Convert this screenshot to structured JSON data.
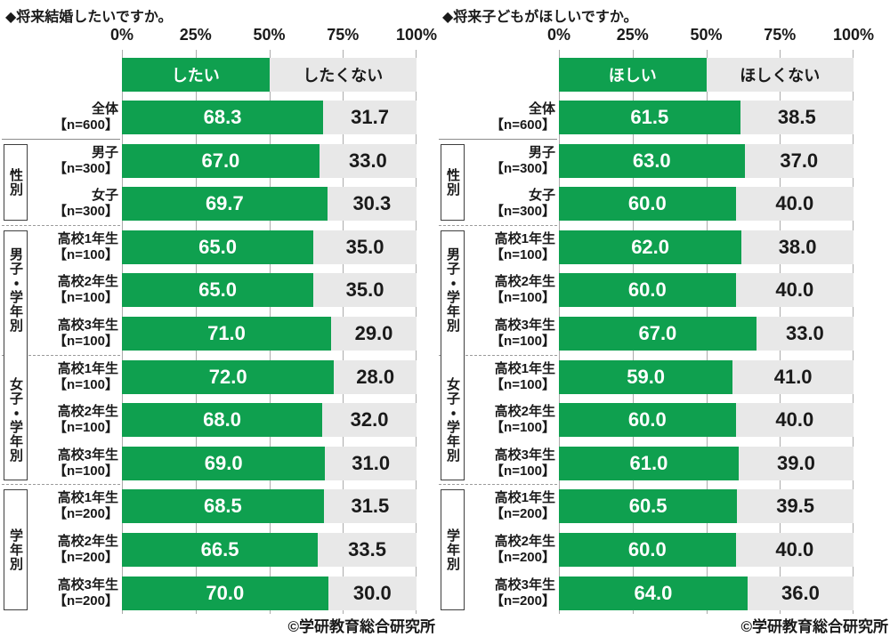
{
  "colors": {
    "bar_yes_green": "#0fa04f",
    "bar_no_gray": "#e8e8e8",
    "text": "#1a1a1a"
  },
  "chart_data": [
    {
      "type": "bar",
      "orientation": "horizontal-stacked",
      "title": "◆将来結婚したいですか。",
      "legend": [
        "したい",
        "したくない"
      ],
      "x_ticks": [
        "0%",
        "25%",
        "50%",
        "75%",
        "100%"
      ],
      "xlim": [
        0,
        100
      ],
      "grid": "ticks-at-25",
      "credit": "©学研教育総合研究所",
      "groups": [
        {
          "label": "性別",
          "start": 1,
          "end": 2
        },
        {
          "label": "男子・学年別",
          "start": 3,
          "end": 5
        },
        {
          "label": "女子・学年別",
          "start": 6,
          "end": 8
        },
        {
          "label": "学年別",
          "start": 9,
          "end": 11
        }
      ],
      "rows": [
        {
          "label": "全体",
          "n": "【n=600】",
          "yes": 68.3,
          "no": 31.7
        },
        {
          "label": "男子",
          "n": "【n=300】",
          "yes": 67.0,
          "no": 33.0
        },
        {
          "label": "女子",
          "n": "【n=300】",
          "yes": 69.7,
          "no": 30.3
        },
        {
          "label": "高校1年生",
          "n": "【n=100】",
          "yes": 65.0,
          "no": 35.0
        },
        {
          "label": "高校2年生",
          "n": "【n=100】",
          "yes": 65.0,
          "no": 35.0
        },
        {
          "label": "高校3年生",
          "n": "【n=100】",
          "yes": 71.0,
          "no": 29.0
        },
        {
          "label": "高校1年生",
          "n": "【n=100】",
          "yes": 72.0,
          "no": 28.0
        },
        {
          "label": "高校2年生",
          "n": "【n=100】",
          "yes": 68.0,
          "no": 32.0
        },
        {
          "label": "高校3年生",
          "n": "【n=100】",
          "yes": 69.0,
          "no": 31.0
        },
        {
          "label": "高校1年生",
          "n": "【n=200】",
          "yes": 68.5,
          "no": 31.5
        },
        {
          "label": "高校2年生",
          "n": "【n=200】",
          "yes": 66.5,
          "no": 33.5
        },
        {
          "label": "高校3年生",
          "n": "【n=200】",
          "yes": 70.0,
          "no": 30.0
        }
      ]
    },
    {
      "type": "bar",
      "orientation": "horizontal-stacked",
      "title": "◆将来子どもがほしいですか。",
      "legend": [
        "ほしい",
        "ほしくない"
      ],
      "x_ticks": [
        "0%",
        "25%",
        "50%",
        "75%",
        "100%"
      ],
      "xlim": [
        0,
        100
      ],
      "grid": "ticks-at-25",
      "credit": "©学研教育総合研究所",
      "groups": [
        {
          "label": "性別",
          "start": 1,
          "end": 2
        },
        {
          "label": "男子・学年別",
          "start": 3,
          "end": 5
        },
        {
          "label": "女子・学年別",
          "start": 6,
          "end": 8
        },
        {
          "label": "学年別",
          "start": 9,
          "end": 11
        }
      ],
      "rows": [
        {
          "label": "全体",
          "n": "【n=600】",
          "yes": 61.5,
          "no": 38.5
        },
        {
          "label": "男子",
          "n": "【n=300】",
          "yes": 63.0,
          "no": 37.0
        },
        {
          "label": "女子",
          "n": "【n=300】",
          "yes": 60.0,
          "no": 40.0
        },
        {
          "label": "高校1年生",
          "n": "【n=100】",
          "yes": 62.0,
          "no": 38.0
        },
        {
          "label": "高校2年生",
          "n": "【n=100】",
          "yes": 60.0,
          "no": 40.0
        },
        {
          "label": "高校3年生",
          "n": "【n=100】",
          "yes": 67.0,
          "no": 33.0
        },
        {
          "label": "高校1年生",
          "n": "【n=100】",
          "yes": 59.0,
          "no": 41.0
        },
        {
          "label": "高校2年生",
          "n": "【n=100】",
          "yes": 60.0,
          "no": 40.0
        },
        {
          "label": "高校3年生",
          "n": "【n=100】",
          "yes": 61.0,
          "no": 39.0
        },
        {
          "label": "高校1年生",
          "n": "【n=200】",
          "yes": 60.5,
          "no": 39.5
        },
        {
          "label": "高校2年生",
          "n": "【n=200】",
          "yes": 60.0,
          "no": 40.0
        },
        {
          "label": "高校3年生",
          "n": "【n=200】",
          "yes": 64.0,
          "no": 36.0
        }
      ]
    }
  ]
}
